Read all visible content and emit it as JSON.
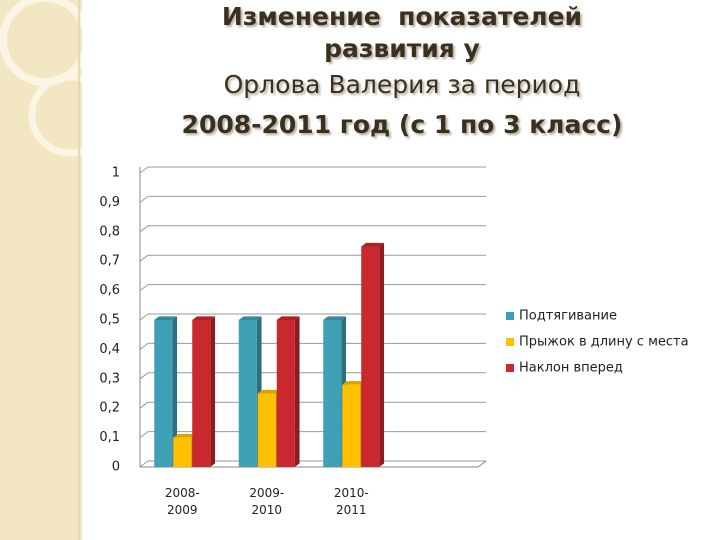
{
  "chart_data": {
    "type": "bar3d",
    "title": [
      "Изменение  показателей",
      "развития у",
      "Орлова Валерия за период",
      "2008-2011 год (с 1 по 3 класс)"
    ],
    "categories": [
      "2008-2009",
      "2009-2010",
      "2010-2011",
      null
    ],
    "series": [
      {
        "name": "Подтягивание",
        "color": "#3f9fb5",
        "values": [
          0.5,
          0.5,
          0.5,
          null
        ]
      },
      {
        "name": "Прыжок в длину с места",
        "color": "#ffc000",
        "values": [
          0.1,
          0.25,
          0.28,
          null
        ]
      },
      {
        "name": "Наклон вперед",
        "color": "#c8282e",
        "values": [
          0.5,
          0.5,
          0.75,
          null
        ]
      }
    ],
    "ylim": [
      0,
      1
    ],
    "yticks": [
      0,
      {
        "value": 0.1,
        "label": "0,1"
      },
      {
        "value": 0.2,
        "label": "0,2"
      },
      {
        "value": 0.3,
        "label": "0,3"
      },
      {
        "value": 0.4,
        "label": "0,4"
      },
      {
        "value": 0.5,
        "label": "0,5"
      },
      {
        "value": 0.6,
        "label": "0,6"
      },
      {
        "value": 0.7,
        "label": "0,7"
      },
      {
        "value": 0.8,
        "label": "0,8"
      },
      {
        "value": 0.9,
        "label": "0,9"
      },
      1
    ],
    "grid": true,
    "legend": "right"
  }
}
